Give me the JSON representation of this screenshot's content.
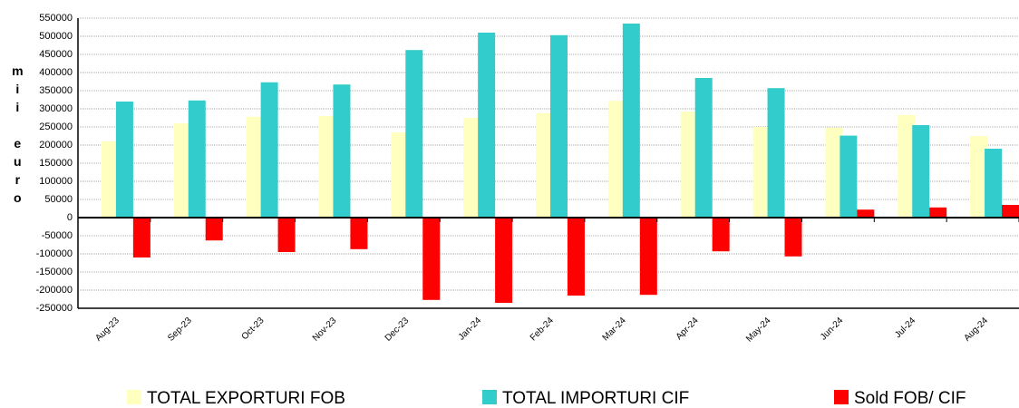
{
  "chart_data": {
    "type": "bar",
    "y_label": "mii euro",
    "categories": [
      "Aug-23",
      "Sep-23",
      "Oct-23",
      "Nov-23",
      "Dec-23",
      "Jan-24",
      "Feb-24",
      "Mar-24",
      "Apr-24",
      "May-24",
      "Jun-24",
      "Jul-24",
      "Aug-24"
    ],
    "series": [
      {
        "name": "TOTAL EXPORTURI FOB",
        "color": "#ffffc0",
        "values": [
          210000,
          260000,
          278000,
          280000,
          235000,
          275000,
          288000,
          322000,
          292000,
          250000,
          248000,
          283000,
          225000
        ]
      },
      {
        "name": "TOTAL IMPORTURI CIF",
        "color": "#33cccc",
        "values": [
          320000,
          323000,
          373000,
          367000,
          462000,
          510000,
          503000,
          535000,
          385000,
          357000,
          226000,
          255000,
          190000
        ]
      },
      {
        "name": "Sold FOB/ CIF",
        "color": "#ff0000",
        "values": [
          -110000,
          -63000,
          -95000,
          -87000,
          -227000,
          -235000,
          -215000,
          -213000,
          -93000,
          -107000,
          22000,
          28000,
          35000
        ]
      }
    ],
    "ylim": [
      -250000,
      550000
    ],
    "yticks": [
      -250000,
      -200000,
      -150000,
      -100000,
      -50000,
      0,
      50000,
      100000,
      150000,
      200000,
      250000,
      300000,
      350000,
      400000,
      450000,
      500000,
      550000
    ],
    "grid": true,
    "legend": "bottom"
  }
}
